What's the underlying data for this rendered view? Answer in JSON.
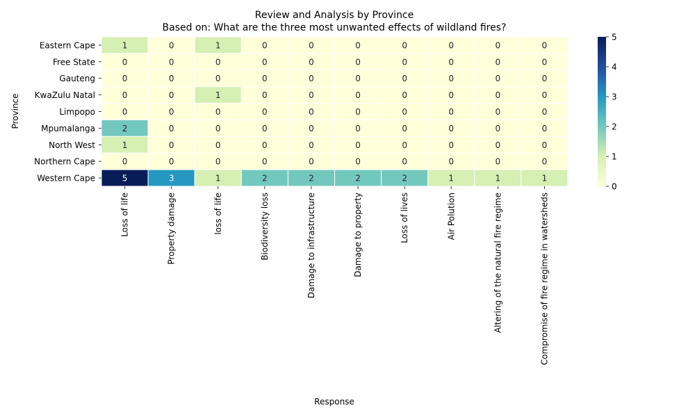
{
  "chart_data": {
    "type": "heatmap",
    "title": "Review and Analysis by Province",
    "subtitle": "Based on: What are the three most unwanted effects of wildland fires?",
    "xlabel": "Response",
    "ylabel": "Province",
    "rows": [
      "Eastern Cape",
      "Free State",
      "Gauteng",
      "KwaZulu Natal",
      "Limpopo",
      "Mpumalanga",
      "North West",
      "Northern Cape",
      "Western Cape"
    ],
    "columns": [
      "Loss of life",
      "Property damage",
      "loss of life",
      "Biodiversity loss",
      "Damage to infrastructure",
      "Damage to property",
      "Loss of lives",
      "Air Polution",
      "Altering of the natural fire regime",
      "Compromise of fire regime in watersheds"
    ],
    "values": [
      [
        1,
        0,
        1,
        0,
        0,
        0,
        0,
        0,
        0,
        0
      ],
      [
        0,
        0,
        0,
        0,
        0,
        0,
        0,
        0,
        0,
        0
      ],
      [
        0,
        0,
        0,
        0,
        0,
        0,
        0,
        0,
        0,
        0
      ],
      [
        0,
        0,
        1,
        0,
        0,
        0,
        0,
        0,
        0,
        0
      ],
      [
        0,
        0,
        0,
        0,
        0,
        0,
        0,
        0,
        0,
        0
      ],
      [
        2,
        0,
        0,
        0,
        0,
        0,
        0,
        0,
        0,
        0
      ],
      [
        1,
        0,
        0,
        0,
        0,
        0,
        0,
        0,
        0,
        0
      ],
      [
        0,
        0,
        0,
        0,
        0,
        0,
        0,
        0,
        0,
        0
      ],
      [
        5,
        3,
        1,
        2,
        2,
        2,
        2,
        1,
        1,
        1
      ]
    ],
    "colorbar": {
      "min": 0,
      "max": 5,
      "ticks": [
        "0",
        "1",
        "2",
        "3",
        "4",
        "5"
      ],
      "colormap": "YlGnBu"
    },
    "color_stops": [
      "#ffffd9",
      "#d6efb3",
      "#73c8bd",
      "#2498c1",
      "#234da0",
      "#081d58"
    ]
  }
}
